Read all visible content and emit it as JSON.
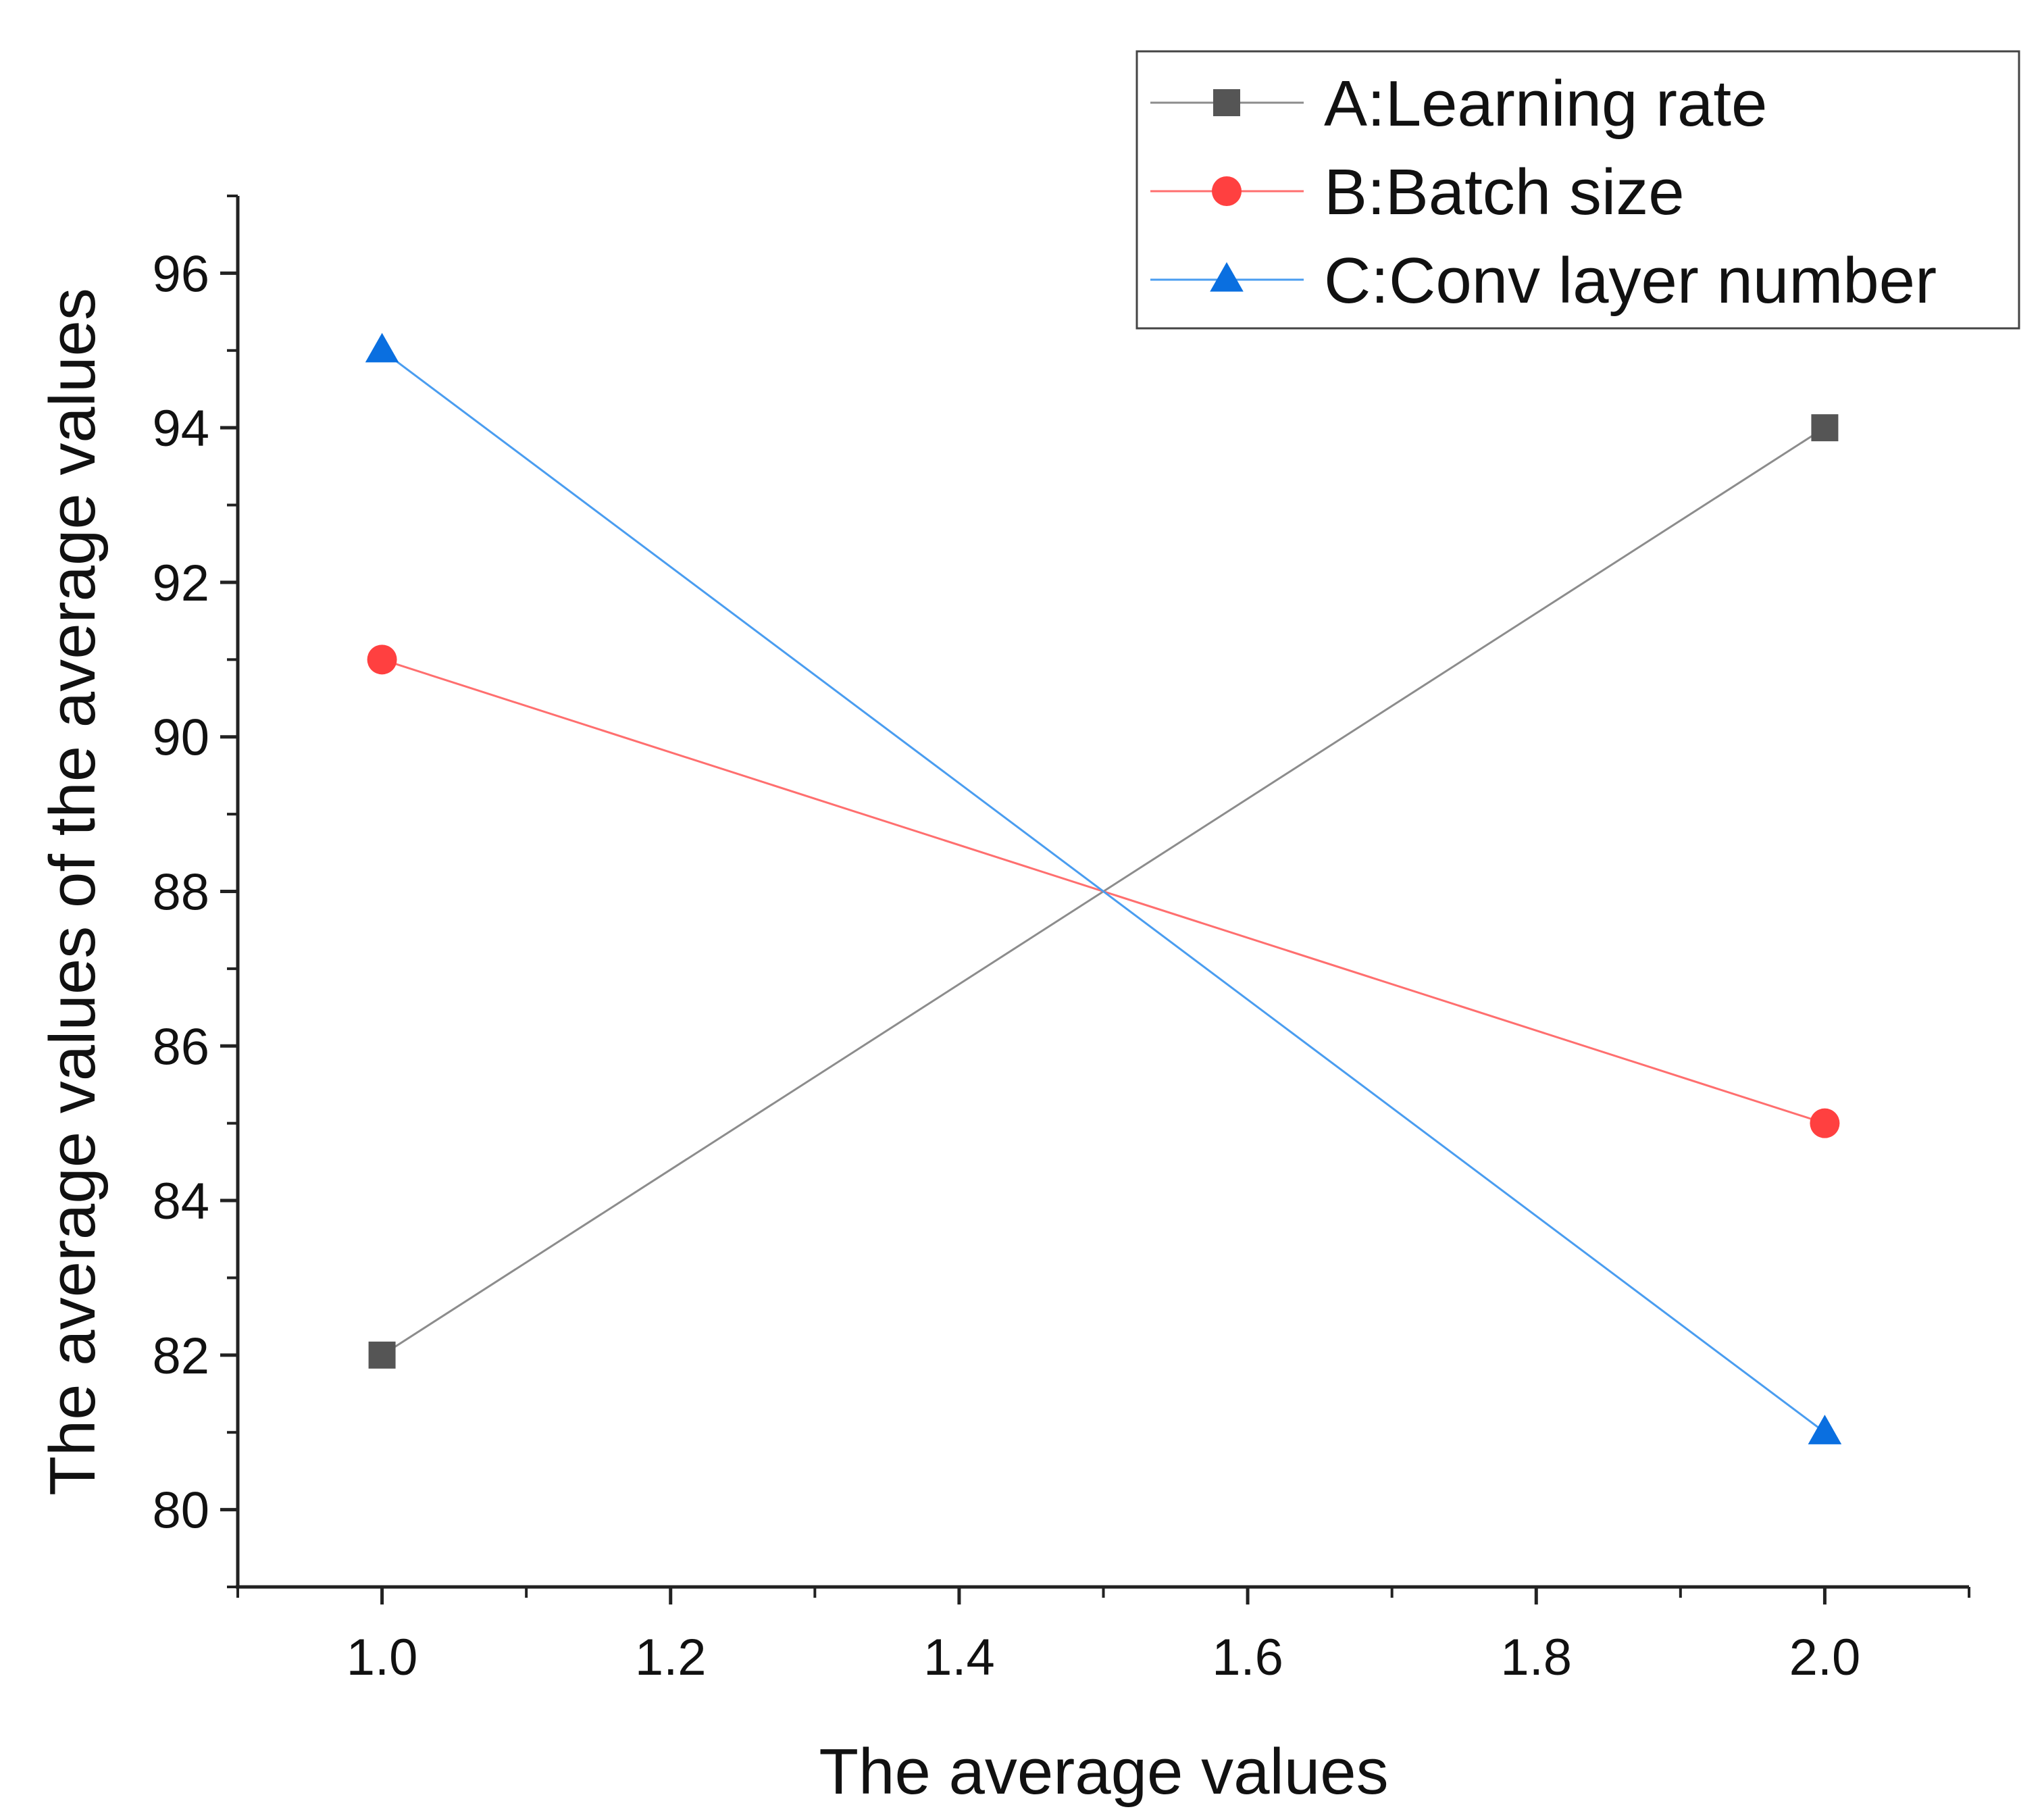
{
  "chart_data": {
    "type": "line",
    "title": "",
    "xlabel": "The average values",
    "ylabel": "The average values of the average values",
    "xlim": [
      0.9,
      2.1
    ],
    "ylim": [
      79,
      97
    ],
    "xticks": [
      1.0,
      1.2,
      1.4,
      1.6,
      1.8,
      2.0
    ],
    "xtick_labels": [
      "1.0",
      "1.2",
      "1.4",
      "1.6",
      "1.8",
      "2.0"
    ],
    "yticks": [
      80,
      82,
      84,
      86,
      88,
      90,
      92,
      94,
      96
    ],
    "ytick_labels": [
      "80",
      "82",
      "84",
      "86",
      "88",
      "90",
      "92",
      "94",
      "96"
    ],
    "x": [
      1.0,
      2.0
    ],
    "grid": false,
    "legend_position": "top-right",
    "series": [
      {
        "name": "A:Learning rate",
        "values": [
          82,
          94
        ],
        "color": "#555555",
        "line_color": "#8c8c8c",
        "marker": "square"
      },
      {
        "name": "B:Batch size",
        "values": [
          91,
          85
        ],
        "color": "#ff4040",
        "line_color": "#ff6f6f",
        "marker": "circle"
      },
      {
        "name": "C:Conv layer number",
        "values": [
          95,
          81
        ],
        "color": "#0a6fe0",
        "line_color": "#4a9df0",
        "marker": "triangle"
      }
    ]
  }
}
